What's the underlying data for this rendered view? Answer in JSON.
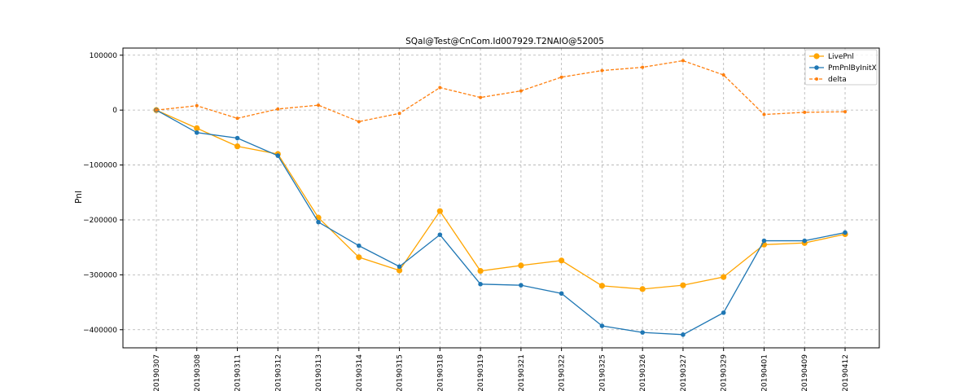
{
  "chart_data": {
    "type": "line",
    "title": "SQal@Test@CnCom.Id007929.T2NAIO@52005",
    "xlabel": "",
    "ylabel": "Pnl",
    "categories": [
      "20190307",
      "20190308",
      "20190311",
      "20190312",
      "20190313",
      "20190314",
      "20190315",
      "20190318",
      "20190319",
      "20190321",
      "20190322",
      "20190325",
      "20190326",
      "20190327",
      "20190329",
      "20190401",
      "20190409",
      "20190412"
    ],
    "yticks": [
      100000,
      0,
      -100000,
      -200000,
      -300000,
      -400000
    ],
    "ytick_labels": [
      "100000",
      "0",
      "−100000",
      "−200000",
      "−300000",
      "−400000"
    ],
    "ylim": [
      -433000,
      113000
    ],
    "grid": true,
    "legend_position": "top-right",
    "series": [
      {
        "name": "LivePnl",
        "color": "#ffa500",
        "style": "solid",
        "marker": "circle-large",
        "values": [
          0,
          -33000,
          -66000,
          -80000,
          -196000,
          -268000,
          -292000,
          -184000,
          -293000,
          -283000,
          -274000,
          -320000,
          -326000,
          -319000,
          -304000,
          -245000,
          -242000,
          -226000
        ]
      },
      {
        "name": "PmPnlByInitX",
        "color": "#1f77b4",
        "style": "solid",
        "marker": "circle",
        "values": [
          0,
          -41000,
          -51000,
          -83000,
          -204000,
          -247000,
          -285000,
          -227000,
          -317000,
          -319000,
          -334000,
          -393000,
          -405000,
          -409000,
          -369000,
          -238000,
          -238000,
          -223000
        ]
      },
      {
        "name": "delta",
        "color": "#ff7f0e",
        "style": "dashed",
        "marker": "circle-small",
        "values": [
          0,
          8000,
          -15000,
          2000,
          9000,
          -21000,
          -6000,
          41000,
          23000,
          35000,
          60000,
          72000,
          78000,
          90000,
          64000,
          -8000,
          -4000,
          -3000
        ]
      }
    ]
  }
}
